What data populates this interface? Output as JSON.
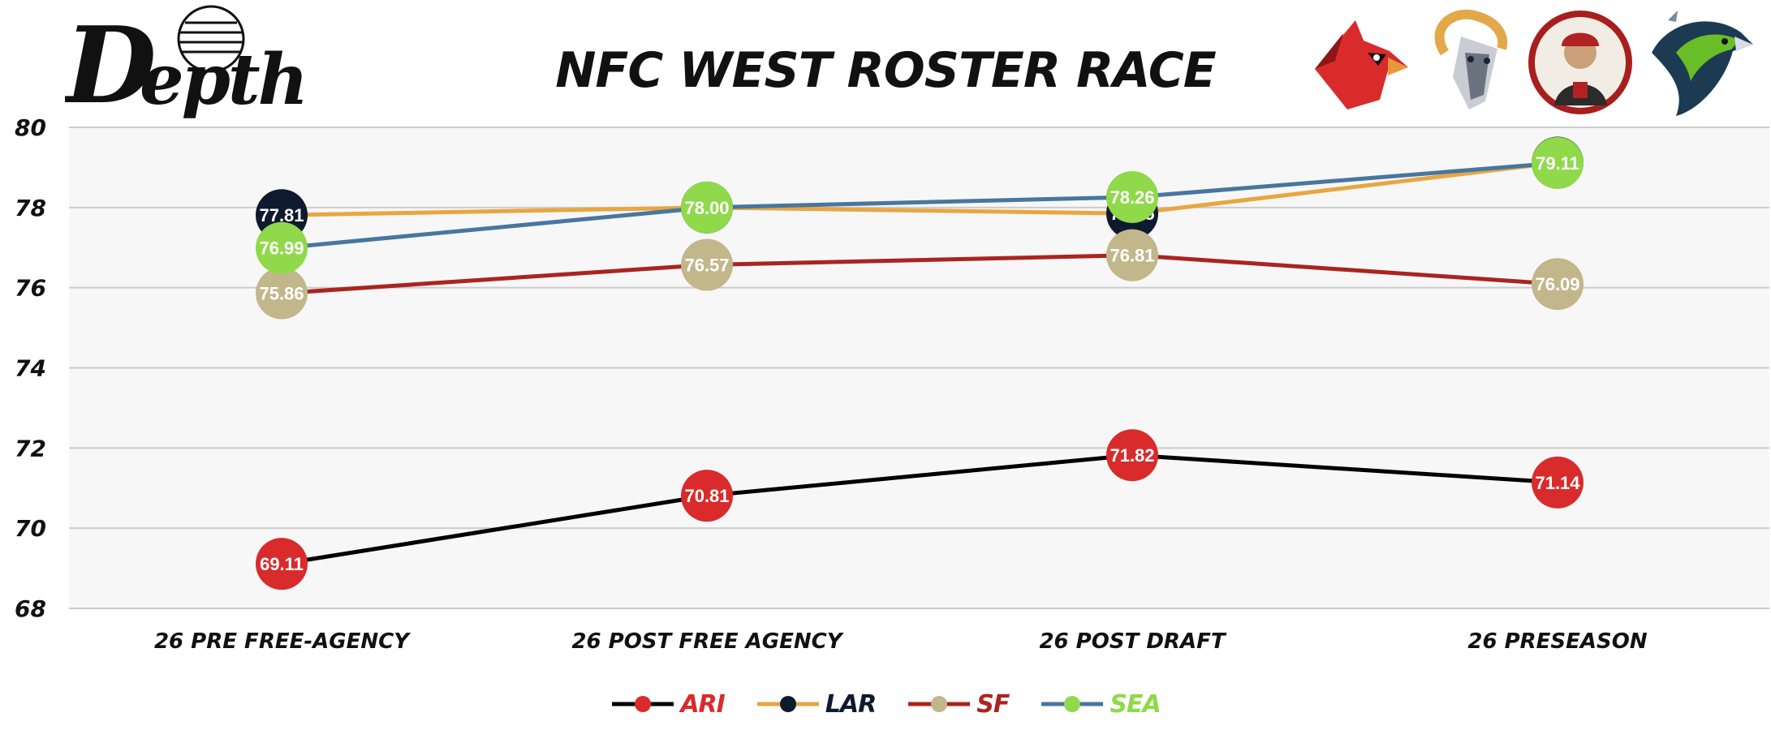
{
  "brand": {
    "name": "Depth"
  },
  "chart_data": {
    "type": "line",
    "title": "NFC WEST ROSTER RACE",
    "categories": [
      "26 PRE FREE-AGENCY",
      "26 POST FREE AGENCY",
      "26 POST DRAFT",
      "26 PRESEASON"
    ],
    "ylim": [
      68,
      80
    ],
    "yticks": [
      68,
      70,
      72,
      74,
      76,
      78,
      80
    ],
    "grid": true,
    "legend_position": "bottom",
    "series": [
      {
        "name": "ARI",
        "values": [
          69.11,
          70.81,
          71.82,
          71.14
        ],
        "line_color": "#000000",
        "marker_color": "#d92b2b",
        "label_color": "#d92b2b"
      },
      {
        "name": "LAR",
        "values": [
          77.81,
          78.0,
          77.85,
          79.12
        ],
        "line_color": "#e8a641",
        "marker_color": "#0f1a2e",
        "label_color": "#0f1a2e"
      },
      {
        "name": "SF",
        "values": [
          75.86,
          76.57,
          76.81,
          76.09
        ],
        "line_color": "#aa2420",
        "marker_color": "#c2b68b",
        "label_color": "#aa2420"
      },
      {
        "name": "SEA",
        "values": [
          76.99,
          78.0,
          78.26,
          79.11
        ],
        "line_color": "#48769e",
        "marker_color": "#8fd94a",
        "label_color": "#8fd94a"
      }
    ]
  },
  "team_logos": [
    {
      "team": "ARI",
      "icon": "cardinal-logo-icon"
    },
    {
      "team": "LAR",
      "icon": "ram-logo-icon"
    },
    {
      "team": "SF",
      "icon": "miner-logo-icon"
    },
    {
      "team": "SEA",
      "icon": "seahawk-logo-icon"
    }
  ]
}
